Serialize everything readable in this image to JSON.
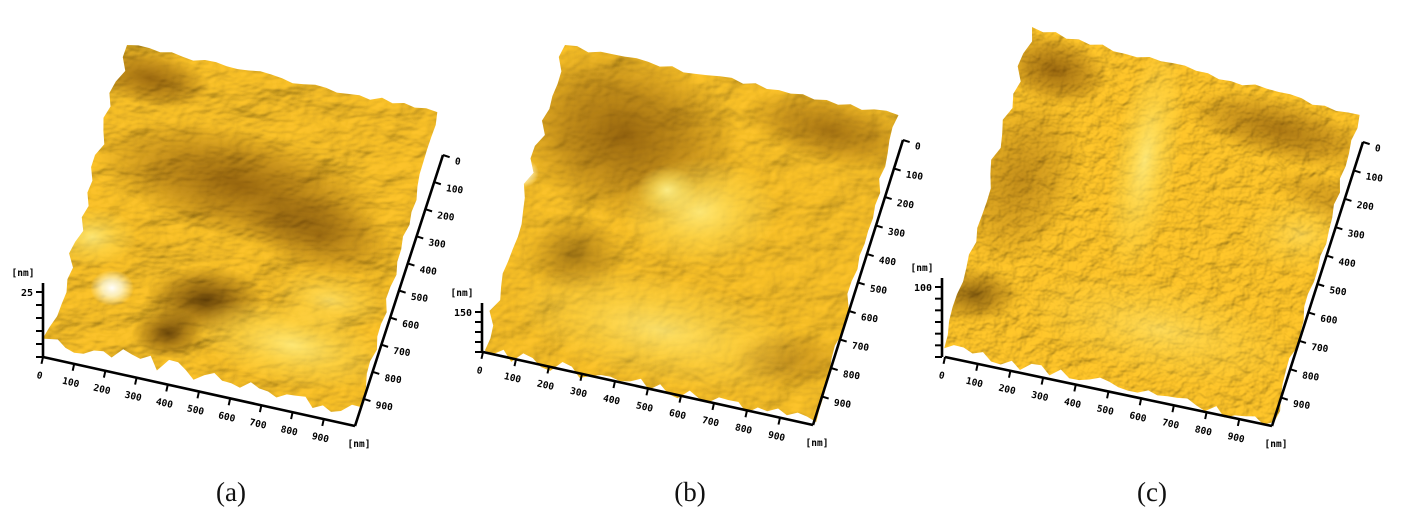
{
  "figure": {
    "background": "#ffffff",
    "description_visible_text_only": true
  },
  "panels": [
    {
      "caption": "(a)",
      "z_axis": {
        "unit": "[nm]",
        "max_label": "25"
      },
      "x_axis": {
        "tick_labels": [
          "0",
          "100",
          "200",
          "300",
          "400",
          "500",
          "600",
          "700",
          "800",
          "900"
        ]
      },
      "y_axis": {
        "tick_labels": [
          "0",
          "100",
          "200",
          "300",
          "400",
          "500",
          "600",
          "700",
          "800",
          "900"
        ],
        "unit": "[nm]"
      }
    },
    {
      "caption": "(b)",
      "z_axis": {
        "unit": "[nm]",
        "max_label": "150"
      },
      "x_axis": {
        "tick_labels": [
          "0",
          "100",
          "200",
          "300",
          "400",
          "500",
          "600",
          "700",
          "800",
          "900"
        ]
      },
      "y_axis": {
        "tick_labels": [
          "0",
          "100",
          "200",
          "300",
          "400",
          "500",
          "600",
          "700",
          "800",
          "900"
        ],
        "unit": "[nm]"
      }
    },
    {
      "caption": "(c)",
      "z_axis": {
        "unit": "[nm]",
        "max_label": "100"
      },
      "x_axis": {
        "tick_labels": [
          "0",
          "100",
          "200",
          "300",
          "400",
          "500",
          "600",
          "700",
          "800",
          "900"
        ]
      },
      "y_axis": {
        "tick_labels": [
          "0",
          "100",
          "200",
          "300",
          "400",
          "500",
          "600",
          "700",
          "800",
          "900"
        ],
        "unit": "[nm]"
      }
    }
  ],
  "style_colors": {
    "background": "#ffffff",
    "axis": "#000000",
    "surface_lighting": "#eeb828",
    "surface_bright": "#ffd900",
    "surface_mid": "#d89c04",
    "surface_dark": "#7a4a00",
    "surface_deep_shadow": "#4a2a00",
    "peak_highlight": "#ffffff"
  }
}
